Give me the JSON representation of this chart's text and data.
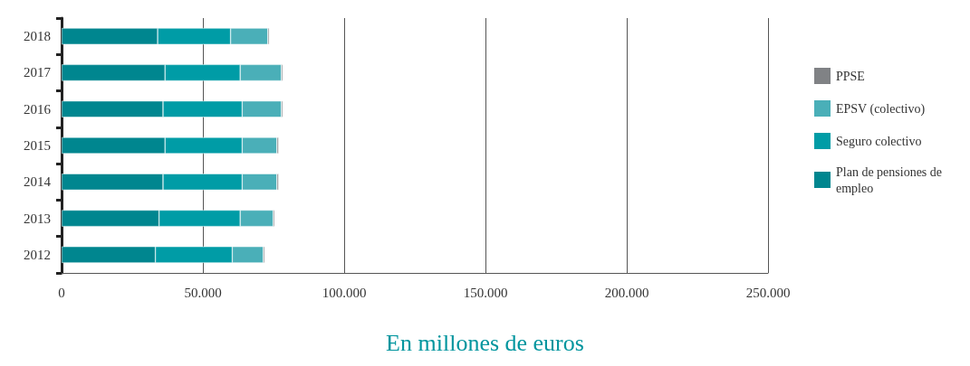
{
  "chart_data": {
    "type": "bar",
    "orientation": "horizontal",
    "stacked": true,
    "xlabel": "En millones de euros",
    "categories": [
      "2018",
      "2017",
      "2016",
      "2015",
      "2014",
      "2013",
      "2012"
    ],
    "series": [
      {
        "name": "Plan de pensiones de empleo",
        "color": "#00868f",
        "values": [
          34000,
          36600,
          35900,
          36600,
          35900,
          34500,
          33200
        ]
      },
      {
        "name": "Seguro colectivo",
        "color": "#009ca6",
        "values": [
          25800,
          26600,
          28000,
          27300,
          28000,
          28700,
          27200
        ]
      },
      {
        "name": "EPSV (colectivo)",
        "color": "#4aafb8",
        "values": [
          13200,
          14600,
          13900,
          12300,
          12300,
          11700,
          11000
        ]
      },
      {
        "name": "PPSE",
        "color": "#808285",
        "values": [
          500,
          500,
          500,
          600,
          600,
          500,
          500
        ]
      }
    ],
    "xlim": [
      0,
      250000
    ],
    "xticks": [
      0,
      {
        "value": 50000,
        "label": "50.000"
      },
      {
        "value": 100000,
        "label": "100.000"
      },
      {
        "value": 150000,
        "label": "150.000"
      },
      {
        "value": 200000,
        "label": "200.000"
      },
      {
        "value": 250000,
        "label": "250.000"
      }
    ],
    "grid": "x",
    "legend": "right"
  }
}
